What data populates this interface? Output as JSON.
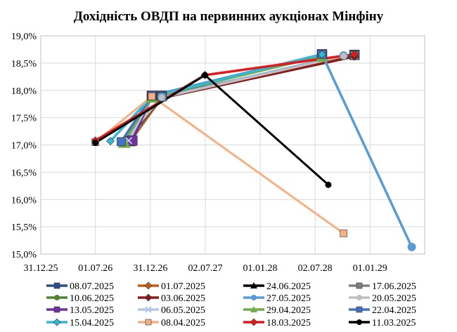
{
  "chart_data": {
    "type": "line",
    "title": "Дохідність ОВДП на первинних аукціонах Мінфіну",
    "xlabel": "",
    "ylabel": "",
    "x_axis": {
      "type": "date",
      "min": "2025-12-31",
      "max": "2029-07-02",
      "ticks": [
        "2025-12-31",
        "2026-07-01",
        "2026-12-31",
        "2027-07-02",
        "2028-01-01",
        "2028-07-02",
        "2029-01-01"
      ],
      "tick_labels": [
        "31.12.25",
        "01.07.26",
        "31.12.26",
        "02.07.27",
        "01.01.28",
        "02.07.28",
        "01.01.29"
      ]
    },
    "y_axis": {
      "min": 15.0,
      "max": 19.0,
      "ticks": [
        15.0,
        15.5,
        16.0,
        16.5,
        17.0,
        17.5,
        18.0,
        18.5,
        19.0
      ],
      "tick_labels": [
        "15,0%",
        "15,5%",
        "16,0%",
        "16,5%",
        "17,0%",
        "17,5%",
        "18,0%",
        "18,5%",
        "19,0%"
      ]
    },
    "grid": {
      "horizontal": true,
      "vertical": true
    },
    "legend": {
      "position": "bottom",
      "columns": 4
    },
    "series": [
      {
        "name": "08.07.2025",
        "color": "#2f4e8c",
        "marker": "square",
        "points": [
          [
            "2026-10-25",
            17.07
          ],
          [
            "2027-02-07",
            17.9
          ],
          [
            "2028-11-10",
            18.65
          ]
        ]
      },
      {
        "name": "01.07.2025",
        "color": "#c55a11",
        "marker": "diamond",
        "points": [
          [
            "2026-10-25",
            17.06
          ],
          [
            "2027-02-07",
            17.87
          ],
          [
            "2028-11-10",
            18.65
          ]
        ]
      },
      {
        "name": "24.06.2025",
        "color": "#000000",
        "marker": "triangle",
        "points": [
          [
            "2027-01-15",
            17.85
          ],
          [
            "2028-11-10",
            18.65
          ]
        ]
      },
      {
        "name": "17.06.2025",
        "color": "#808080",
        "marker": "square",
        "points": [
          [
            "2026-10-20",
            17.07
          ],
          [
            "2027-02-07",
            17.88
          ],
          [
            "2028-11-10",
            18.64
          ]
        ]
      },
      {
        "name": "10.06.2025",
        "color": "#548235",
        "marker": "circle",
        "points": [
          [
            "2026-10-15",
            17.06
          ],
          [
            "2027-02-07",
            17.87
          ],
          [
            "2028-11-10",
            18.63
          ]
        ]
      },
      {
        "name": "03.06.2025",
        "color": "#8b1a1a",
        "marker": "diamond",
        "points": [
          [
            "2026-10-10",
            17.07
          ],
          [
            "2027-02-07",
            17.86
          ],
          [
            "2028-11-10",
            18.62
          ]
        ]
      },
      {
        "name": "27.05.2025",
        "color": "#5b9bd5",
        "marker": "circle",
        "points": [
          [
            "2026-10-05",
            17.07
          ],
          [
            "2027-02-07",
            17.88
          ],
          [
            "2028-10-05",
            18.64
          ]
        ]
      },
      {
        "name": "20.05.2025",
        "color": "#bfbfbf",
        "marker": "circle",
        "points": [
          [
            "2026-10-01",
            17.06
          ],
          [
            "2027-02-07",
            17.87
          ],
          [
            "2028-10-05",
            18.63
          ]
        ]
      },
      {
        "name": "13.05.2025",
        "color": "#7030a0",
        "marker": "square",
        "points": [
          [
            "2026-11-01",
            17.08
          ],
          [
            "2027-01-05",
            17.9
          ],
          [
            "2028-07-25",
            18.66
          ]
        ]
      },
      {
        "name": "06.05.2025",
        "color": "#b4c7e7",
        "marker": "x",
        "points": [
          [
            "2026-10-20",
            17.08
          ],
          [
            "2027-01-05",
            17.89
          ],
          [
            "2028-07-25",
            18.65
          ]
        ]
      },
      {
        "name": "29.04.2025",
        "color": "#70ad47",
        "marker": "triangle",
        "points": [
          [
            "2026-10-05",
            17.05
          ],
          [
            "2027-01-05",
            17.88
          ],
          [
            "2028-07-25",
            18.63
          ]
        ]
      },
      {
        "name": "22.04.2025",
        "color": "#4472c4",
        "marker": "square",
        "points": [
          [
            "2026-09-25",
            17.06
          ],
          [
            "2027-01-05",
            17.9
          ],
          [
            "2028-07-25",
            18.66
          ]
        ]
      },
      {
        "name": "15.04.2025",
        "color": "#33b8d6",
        "marker": "diamond",
        "points": [
          [
            "2026-08-20",
            17.07
          ],
          [
            "2027-01-05",
            17.89
          ],
          [
            "2028-07-25",
            18.66
          ]
        ]
      },
      {
        "name": "08.04.2025",
        "color": "#f4b183",
        "marker": "square",
        "points": [
          [
            "2026-07-01",
            17.05
          ],
          [
            "2027-01-05",
            17.89
          ],
          [
            "2028-10-05",
            15.38
          ]
        ]
      },
      {
        "name": "18.03.2025",
        "color": "#e31a1c",
        "marker": "diamond",
        "points": [
          [
            "2026-07-01",
            17.08
          ],
          [
            "2027-07-01",
            18.28
          ],
          [
            "2028-11-10",
            18.66
          ]
        ]
      },
      {
        "name": "11.03.2025",
        "color": "#000000",
        "marker": "circle",
        "points": [
          [
            "2026-07-01",
            17.04
          ],
          [
            "2027-07-01",
            18.28
          ],
          [
            "2028-08-15",
            16.27
          ]
        ]
      }
    ],
    "extra_segments": [
      {
        "series": "27.05.2025",
        "points": [
          [
            "2028-07-25",
            18.66
          ],
          [
            "2029-05-20",
            15.13
          ]
        ]
      }
    ]
  }
}
